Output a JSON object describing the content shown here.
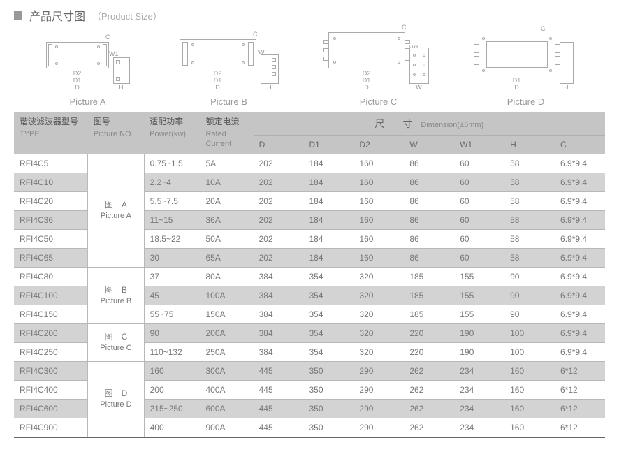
{
  "title": {
    "square_color": "#999999",
    "cn": "产品尺寸图",
    "en": "（Product Size）"
  },
  "diagrams": {
    "labels": [
      "Picture A",
      "Picture B",
      "Picture C",
      "Picture D"
    ],
    "dim_letters": {
      "D": "D",
      "D1": "D1",
      "D2": "D2",
      "W": "W",
      "W1": "W1",
      "H": "H",
      "C": "C"
    }
  },
  "table": {
    "headers": {
      "type": {
        "cn": "谐波滤波器型号",
        "en": "TYPE"
      },
      "pic": {
        "cn": "图号",
        "en": "Picture NO."
      },
      "power": {
        "cn": "适配功率",
        "en": "Power(kw)"
      },
      "current": {
        "cn": "额定电流",
        "en": "Rated Current"
      },
      "dimension_cn": "尺　寸",
      "dimension_en": "Dimension(±5mm)",
      "cols": [
        "D",
        "D1",
        "D2",
        "W",
        "W1",
        "H",
        "C"
      ]
    },
    "groups": [
      {
        "pic": {
          "cn": "图　A",
          "en": "Picture A"
        },
        "rows": [
          {
            "type": "RFI4C5",
            "power": "0.75~1.5",
            "current": "5A",
            "dims": [
              "202",
              "184",
              "160",
              "86",
              "60",
              "58",
              "6.9*9.4"
            ],
            "shade": false
          },
          {
            "type": "RFI4C10",
            "power": "2.2~4",
            "current": "10A",
            "dims": [
              "202",
              "184",
              "160",
              "86",
              "60",
              "58",
              "6.9*9.4"
            ],
            "shade": true
          },
          {
            "type": "RFI4C20",
            "power": "5.5~7.5",
            "current": "20A",
            "dims": [
              "202",
              "184",
              "160",
              "86",
              "60",
              "58",
              "6.9*9.4"
            ],
            "shade": false
          },
          {
            "type": "RFI4C36",
            "power": "11~15",
            "current": "36A",
            "dims": [
              "202",
              "184",
              "160",
              "86",
              "60",
              "58",
              "6.9*9.4"
            ],
            "shade": true
          },
          {
            "type": "RFI4C50",
            "power": "18.5~22",
            "current": "50A",
            "dims": [
              "202",
              "184",
              "160",
              "86",
              "60",
              "58",
              "6.9*9.4"
            ],
            "shade": false
          },
          {
            "type": "RFI4C65",
            "power": "30",
            "current": "65A",
            "dims": [
              "202",
              "184",
              "160",
              "86",
              "60",
              "58",
              "6.9*9.4"
            ],
            "shade": true
          }
        ]
      },
      {
        "pic": {
          "cn": "图　B",
          "en": "Picture B"
        },
        "rows": [
          {
            "type": "RFI4C80",
            "power": "37",
            "current": "80A",
            "dims": [
              "384",
              "354",
              "320",
              "185",
              "155",
              "90",
              "6.9*9.4"
            ],
            "shade": false
          },
          {
            "type": "RFI4C100",
            "power": "45",
            "current": "100A",
            "dims": [
              "384",
              "354",
              "320",
              "185",
              "155",
              "90",
              "6.9*9.4"
            ],
            "shade": true
          },
          {
            "type": "RFI4C150",
            "power": "55~75",
            "current": "150A",
            "dims": [
              "384",
              "354",
              "320",
              "185",
              "155",
              "90",
              "6.9*9.4"
            ],
            "shade": false
          }
        ]
      },
      {
        "pic": {
          "cn": "图　C",
          "en": "Picture C"
        },
        "rows": [
          {
            "type": "RFI4C200",
            "power": "90",
            "current": "200A",
            "dims": [
              "384",
              "354",
              "320",
              "220",
              "190",
              "100",
              "6.9*9.4"
            ],
            "shade": true
          },
          {
            "type": "RFI4C250",
            "power": "110~132",
            "current": "250A",
            "dims": [
              "384",
              "354",
              "320",
              "220",
              "190",
              "100",
              "6.9*9.4"
            ],
            "shade": false
          }
        ]
      },
      {
        "pic": {
          "cn": "图　D",
          "en": "Picture D"
        },
        "rows": [
          {
            "type": "RFI4C300",
            "power": "160",
            "current": "300A",
            "dims": [
              "445",
              "350",
              "290",
              "262",
              "234",
              "160",
              "6*12"
            ],
            "shade": true
          },
          {
            "type": "RFI4C400",
            "power": "200",
            "current": "400A",
            "dims": [
              "445",
              "350",
              "290",
              "262",
              "234",
              "160",
              "6*12"
            ],
            "shade": false
          },
          {
            "type": "RFI4C600",
            "power": "215~250",
            "current": "600A",
            "dims": [
              "445",
              "350",
              "290",
              "262",
              "234",
              "160",
              "6*12"
            ],
            "shade": true
          },
          {
            "type": "RFI4C900",
            "power": "400",
            "current": "900A",
            "dims": [
              "445",
              "350",
              "290",
              "262",
              "234",
              "160",
              "6*12"
            ],
            "shade": false
          }
        ]
      }
    ]
  },
  "style": {
    "text_color": "#777777",
    "header_bg": "#c5c5c5",
    "shade_bg": "#d3d3d3",
    "border_color": "#b8b8b8",
    "bottom_border": "#666666",
    "diagram_stroke": "#aaaaaa"
  }
}
